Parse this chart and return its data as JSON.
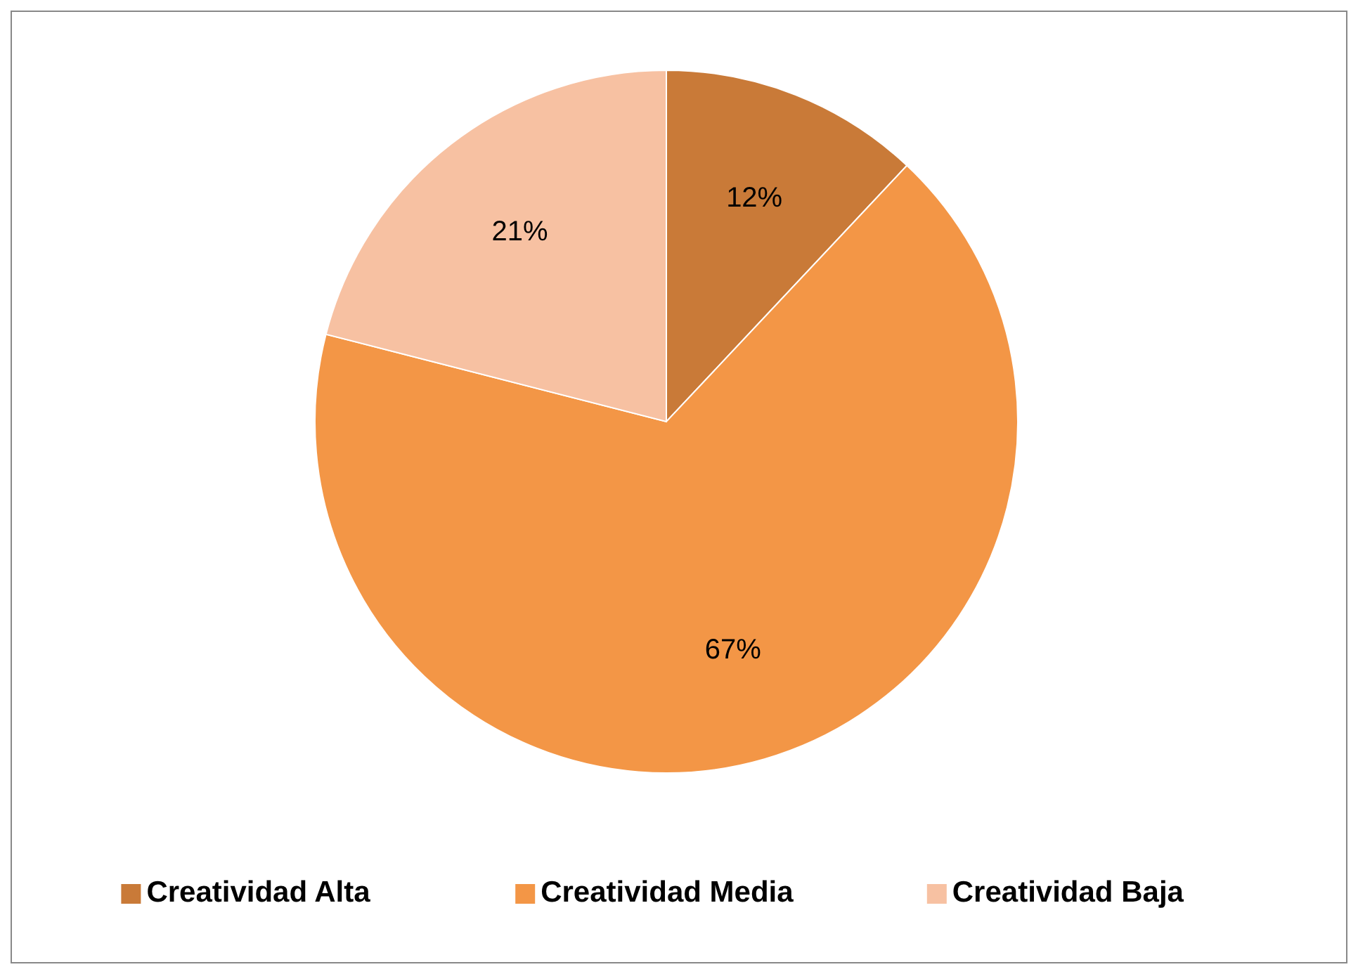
{
  "chart_data": {
    "type": "pie",
    "categories": [
      "Creatividad Alta",
      "Creatividad Media",
      "Creatividad Baja"
    ],
    "values": [
      12,
      67,
      21
    ],
    "value_labels": [
      "12%",
      "67%",
      "21%"
    ],
    "colors": [
      "#c97a38",
      "#f39646",
      "#f7c1a2"
    ],
    "legend": "bottom"
  }
}
